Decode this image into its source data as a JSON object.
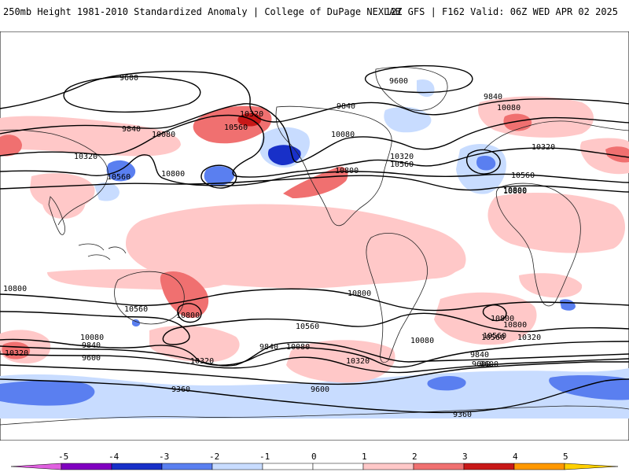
{
  "header": {
    "left": "250mb Height 1981-2010 Standardized Anomaly | College of DuPage NEXLAB",
    "right": "12Z GFS | F162 Valid: 06Z WED APR 02 2025"
  },
  "colors": {
    "anom_neg5": "#e060e0",
    "anom_neg4": "#8000c0",
    "anom_neg3": "#1830c8",
    "anom_neg2": "#5a7ff0",
    "anom_neg1": "#c8dcff",
    "anom_zero": "#ffffff",
    "anom_pos1": "#ffc8c8",
    "anom_pos2": "#f07070",
    "anom_pos3": "#c81818",
    "anom_pos4": "#ff9800",
    "anom_pos5": "#ffd000",
    "contour": "#000000",
    "coastline": "#222222"
  },
  "colorbar": {
    "tick_labels": [
      "-5",
      "-4",
      "-3",
      "-2",
      "-1",
      "0",
      "1",
      "2",
      "3",
      "4",
      "5"
    ]
  },
  "contour_labels": [
    "9600",
    "9600",
    "9840",
    "9840",
    "9840",
    "10080",
    "10080",
    "10080",
    "10320",
    "10320",
    "10320",
    "10320",
    "10560",
    "10560",
    "10560",
    "10560",
    "10800",
    "10800",
    "10800",
    "10320",
    "10560",
    "10800",
    "10800",
    "10560",
    "10080",
    "9840",
    "9600",
    "10320",
    "10560",
    "10800",
    "10080",
    "9840",
    "9600",
    "10320",
    "9360",
    "9600",
    "9360",
    "10800",
    "10560",
    "10080",
    "9840",
    "10800",
    "10800",
    "10320",
    "9600"
  ]
}
